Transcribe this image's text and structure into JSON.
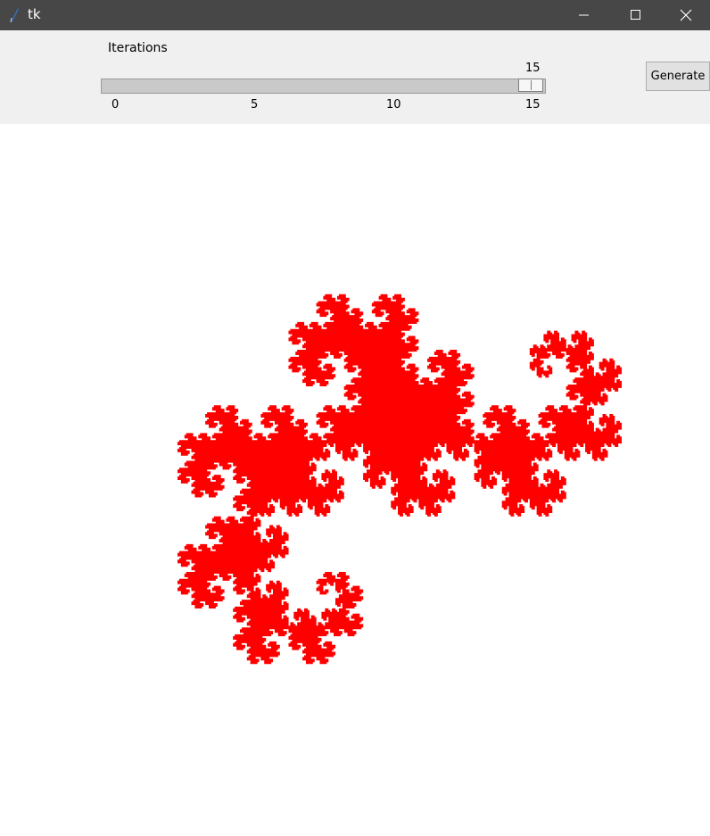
{
  "window": {
    "title": "tk",
    "icon": "tk-feather-icon"
  },
  "controls": {
    "scale_label": "Iterations",
    "scale_value": "15",
    "scale_min": 0,
    "scale_max": 15,
    "scale_fraction": 1.0,
    "ticks": [
      "0",
      "5",
      "10",
      "15"
    ],
    "generate_label": "Generate"
  },
  "canvas": {
    "fractal": "dragon-curve",
    "iterations": 15,
    "fill_color": "#ff0000",
    "background": "#ffffff"
  }
}
